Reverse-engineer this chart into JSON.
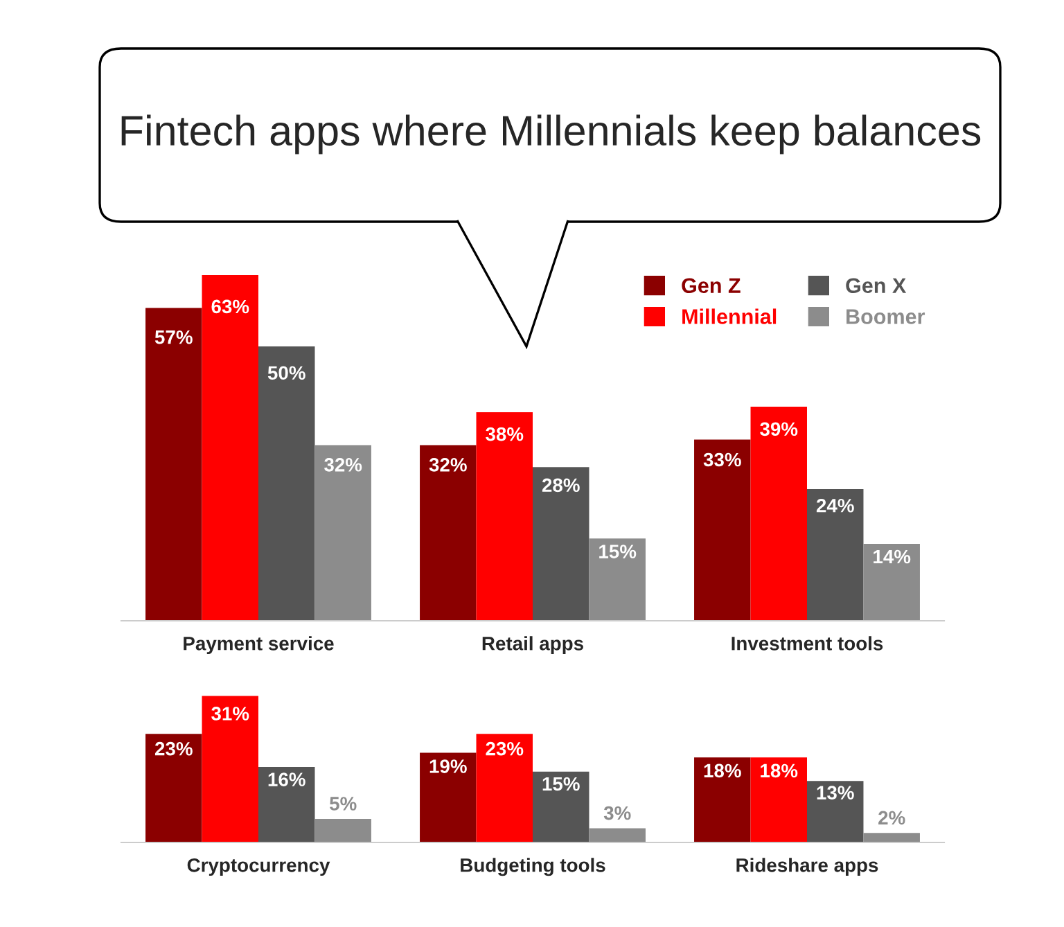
{
  "chart_data": [
    {
      "type": "bar",
      "title": "Fintech apps where Millennials keep balances",
      "legend": "top right",
      "categories": [
        "Payment service",
        "Retail apps",
        "Investment tools"
      ],
      "series": [
        {
          "name": "Gen Z",
          "color": "#8b0000",
          "values": [
            57,
            32,
            33
          ],
          "value_labels": [
            "57%",
            "32%",
            "33%"
          ]
        },
        {
          "name": "Millennial",
          "color": "#ff0000",
          "values": [
            63,
            38,
            39
          ],
          "value_labels": [
            "63%",
            "38%",
            "39%"
          ]
        },
        {
          "name": "Gen X",
          "color": "#555555",
          "values": [
            50,
            28,
            24
          ],
          "value_labels": [
            "50%",
            "28%",
            "24%"
          ]
        },
        {
          "name": "Boomer",
          "color": "#8c8c8c",
          "values": [
            32,
            15,
            14
          ],
          "value_labels": [
            "32%",
            "15%",
            "14%"
          ]
        }
      ]
    },
    {
      "type": "bar",
      "categories": [
        "Cryptocurrency",
        "Budgeting tools",
        "Rideshare apps"
      ],
      "series": [
        {
          "color": "#8b0000",
          "values": [
            23,
            19,
            18
          ],
          "value_labels": [
            "23%",
            "19%",
            "18%"
          ]
        },
        {
          "color": "#ff0000",
          "values": [
            31,
            23,
            18
          ],
          "value_labels": [
            "31%",
            "23%",
            "18%"
          ]
        },
        {
          "color": "#555555",
          "values": [
            16,
            15,
            13
          ],
          "value_labels": [
            "16%",
            "15%",
            "13%"
          ]
        },
        {
          "color": "#8c8c8c",
          "values": [
            5,
            3,
            2
          ],
          "value_labels": [
            "5%",
            "3%",
            "2%"
          ]
        }
      ]
    }
  ]
}
